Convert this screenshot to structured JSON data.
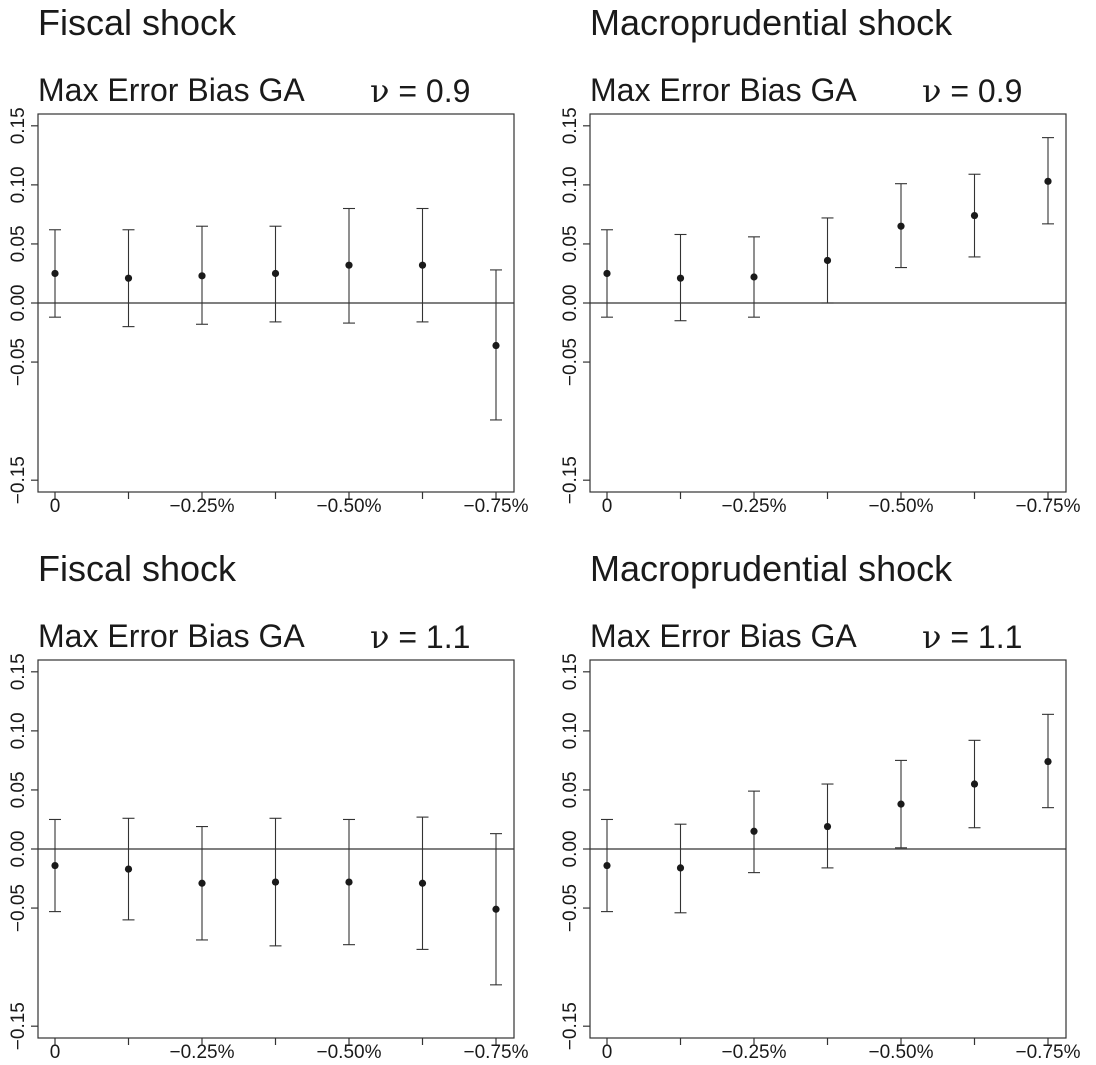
{
  "chart_data": [
    {
      "type": "scatter",
      "title": "Fiscal shock",
      "subtitle": "Max Error Bias GA",
      "nu_symbol": "ν",
      "nu_text": " = 0.9",
      "x_tick_labels": [
        "0",
        "−0.25%",
        "−0.50%",
        "−0.75%"
      ],
      "y_tick_labels": [
        "−0.15",
        "−0.05",
        "0.00",
        "0.05",
        "0.10",
        "0.15"
      ],
      "y_ticks": [
        -0.15,
        -0.05,
        0.0,
        0.05,
        0.1,
        0.15
      ],
      "ylim": [
        -0.16,
        0.16
      ],
      "points": [
        {
          "x": 0,
          "y": 0.025,
          "lo": -0.012,
          "hi": 0.062
        },
        {
          "x": -0.125,
          "y": 0.021,
          "lo": -0.02,
          "hi": 0.062
        },
        {
          "x": -0.25,
          "y": 0.023,
          "lo": -0.018,
          "hi": 0.065
        },
        {
          "x": -0.375,
          "y": 0.025,
          "lo": -0.016,
          "hi": 0.065
        },
        {
          "x": -0.5,
          "y": 0.032,
          "lo": -0.017,
          "hi": 0.08
        },
        {
          "x": -0.625,
          "y": 0.032,
          "lo": -0.016,
          "hi": 0.08
        },
        {
          "x": -0.75,
          "y": -0.036,
          "lo": -0.099,
          "hi": 0.028
        }
      ],
      "hline_y": 0,
      "colors": {
        "point": "#1a1a1a",
        "line": "#333333"
      }
    },
    {
      "type": "scatter",
      "title": "Macroprudential shock",
      "subtitle": "Max Error Bias GA",
      "nu_symbol": "ν",
      "nu_text": " = 0.9",
      "x_tick_labels": [
        "0",
        "−0.25%",
        "−0.50%",
        "−0.75%"
      ],
      "y_tick_labels": [
        "−0.15",
        "−0.05",
        "0.00",
        "0.05",
        "0.10",
        "0.15"
      ],
      "y_ticks": [
        -0.15,
        -0.05,
        0.0,
        0.05,
        0.1,
        0.15
      ],
      "ylim": [
        -0.16,
        0.16
      ],
      "points": [
        {
          "x": 0,
          "y": 0.025,
          "lo": -0.012,
          "hi": 0.062
        },
        {
          "x": -0.125,
          "y": 0.021,
          "lo": -0.015,
          "hi": 0.058
        },
        {
          "x": -0.25,
          "y": 0.022,
          "lo": -0.012,
          "hi": 0.056
        },
        {
          "x": -0.375,
          "y": 0.036,
          "lo": 0.0,
          "hi": 0.072
        },
        {
          "x": -0.5,
          "y": 0.065,
          "lo": 0.03,
          "hi": 0.101
        },
        {
          "x": -0.625,
          "y": 0.074,
          "lo": 0.039,
          "hi": 0.109
        },
        {
          "x": -0.75,
          "y": 0.103,
          "lo": 0.067,
          "hi": 0.14
        }
      ],
      "hline_y": 0,
      "colors": {
        "point": "#1a1a1a",
        "line": "#333333"
      }
    },
    {
      "type": "scatter",
      "title": "Fiscal shock",
      "subtitle": "Max Error Bias GA",
      "nu_symbol": "ν",
      "nu_text": " = 1.1",
      "x_tick_labels": [
        "0",
        "−0.25%",
        "−0.50%",
        "−0.75%"
      ],
      "y_tick_labels": [
        "−0.15",
        "−0.05",
        "0.00",
        "0.05",
        "0.10",
        "0.15"
      ],
      "y_ticks": [
        -0.15,
        -0.05,
        0.0,
        0.05,
        0.1,
        0.15
      ],
      "ylim": [
        -0.16,
        0.16
      ],
      "points": [
        {
          "x": 0,
          "y": -0.014,
          "lo": -0.053,
          "hi": 0.025
        },
        {
          "x": -0.125,
          "y": -0.017,
          "lo": -0.06,
          "hi": 0.026
        },
        {
          "x": -0.25,
          "y": -0.029,
          "lo": -0.077,
          "hi": 0.019
        },
        {
          "x": -0.375,
          "y": -0.028,
          "lo": -0.082,
          "hi": 0.026
        },
        {
          "x": -0.5,
          "y": -0.028,
          "lo": -0.081,
          "hi": 0.025
        },
        {
          "x": -0.625,
          "y": -0.029,
          "lo": -0.085,
          "hi": 0.027
        },
        {
          "x": -0.75,
          "y": -0.051,
          "lo": -0.115,
          "hi": 0.013
        }
      ],
      "hline_y": 0,
      "colors": {
        "point": "#1a1a1a",
        "line": "#333333"
      }
    },
    {
      "type": "scatter",
      "title": "Macroprudential shock",
      "subtitle": "Max Error Bias GA",
      "nu_symbol": "ν",
      "nu_text": " = 1.1",
      "x_tick_labels": [
        "0",
        "−0.25%",
        "−0.50%",
        "−0.75%"
      ],
      "y_tick_labels": [
        "−0.15",
        "−0.05",
        "0.00",
        "0.05",
        "0.10",
        "0.15"
      ],
      "y_ticks": [
        -0.15,
        -0.05,
        0.0,
        0.05,
        0.1,
        0.15
      ],
      "ylim": [
        -0.16,
        0.16
      ],
      "points": [
        {
          "x": 0,
          "y": -0.014,
          "lo": -0.053,
          "hi": 0.025
        },
        {
          "x": -0.125,
          "y": -0.016,
          "lo": -0.054,
          "hi": 0.021
        },
        {
          "x": -0.25,
          "y": 0.015,
          "lo": -0.02,
          "hi": 0.049
        },
        {
          "x": -0.375,
          "y": 0.019,
          "lo": -0.016,
          "hi": 0.055
        },
        {
          "x": -0.5,
          "y": 0.038,
          "lo": 0.001,
          "hi": 0.075
        },
        {
          "x": -0.625,
          "y": 0.055,
          "lo": 0.018,
          "hi": 0.092
        },
        {
          "x": -0.75,
          "y": 0.074,
          "lo": 0.035,
          "hi": 0.114
        }
      ],
      "hline_y": 0,
      "colors": {
        "point": "#1a1a1a",
        "line": "#333333"
      }
    }
  ]
}
